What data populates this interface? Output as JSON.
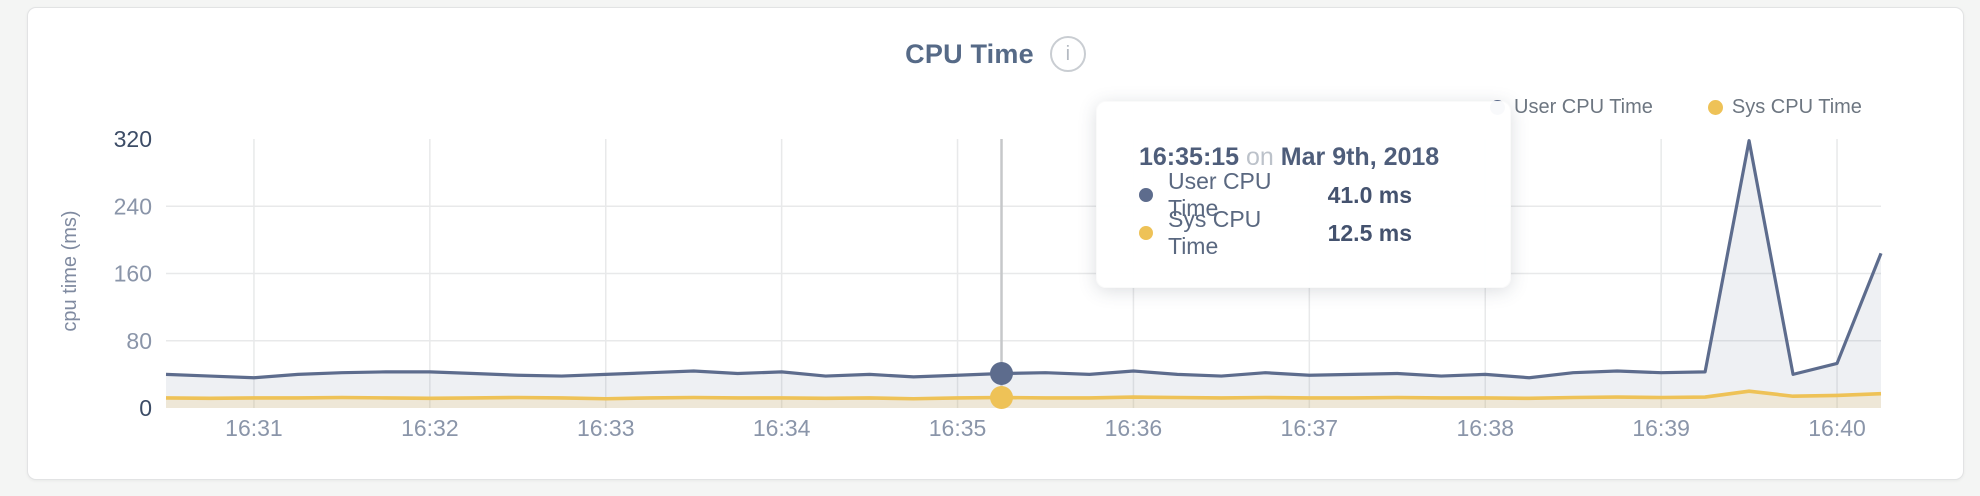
{
  "header": {
    "title": "CPU Time",
    "info_icon": "i"
  },
  "legend": {
    "items": [
      {
        "label": "User CPU Time",
        "color": "#5d6c8d"
      },
      {
        "label": "Sys CPU Time",
        "color": "#eec257"
      }
    ]
  },
  "y_axis": {
    "title": "cpu time (ms)",
    "ticks": [
      320,
      240,
      160,
      80,
      0
    ]
  },
  "x_axis": {
    "ticks": [
      "16:31",
      "16:32",
      "16:33",
      "16:34",
      "16:35",
      "16:36",
      "16:37",
      "16:38",
      "16:39",
      "16:40"
    ]
  },
  "tooltip": {
    "time": "16:35:15",
    "connector": "on",
    "date": "Mar 9th, 2018",
    "rows": [
      {
        "label": "User CPU Time",
        "value": "41.0 ms",
        "color": "#5d6c8d"
      },
      {
        "label": "Sys CPU Time",
        "value": "12.5 ms",
        "color": "#eec257"
      }
    ]
  },
  "chart_data": {
    "type": "area",
    "title": "CPU Time",
    "xlabel": "",
    "ylabel": "cpu time (ms)",
    "ylim": [
      0,
      320
    ],
    "grid": true,
    "legend_position": "top-right",
    "x": [
      "16:30:30",
      "16:30:45",
      "16:31:00",
      "16:31:15",
      "16:31:30",
      "16:31:45",
      "16:32:00",
      "16:32:15",
      "16:32:30",
      "16:32:45",
      "16:33:00",
      "16:33:15",
      "16:33:30",
      "16:33:45",
      "16:34:00",
      "16:34:15",
      "16:34:30",
      "16:34:45",
      "16:35:00",
      "16:35:15",
      "16:35:30",
      "16:35:45",
      "16:36:00",
      "16:36:15",
      "16:36:30",
      "16:36:45",
      "16:37:00",
      "16:37:15",
      "16:37:30",
      "16:37:45",
      "16:38:00",
      "16:38:15",
      "16:38:30",
      "16:38:45",
      "16:39:00",
      "16:39:15",
      "16:39:30",
      "16:39:45",
      "16:40:00",
      "16:40:15"
    ],
    "series": [
      {
        "name": "User CPU Time",
        "color": "#5d6c8d",
        "fill": "rgba(93,108,141,0.10)",
        "values": [
          40,
          38,
          36,
          40,
          42,
          43,
          43,
          41,
          39,
          38,
          40,
          42,
          44,
          41,
          43,
          38,
          40,
          37,
          39,
          41,
          42,
          40,
          44,
          40,
          38,
          42,
          39,
          40,
          41,
          38,
          40,
          36,
          42,
          44,
          42,
          43,
          318,
          40,
          53,
          184
        ]
      },
      {
        "name": "Sys CPU Time",
        "color": "#eec257",
        "fill": "rgba(238,194,87,0.18)",
        "values": [
          12,
          11.5,
          12,
          12,
          12.5,
          12,
          11.5,
          12,
          12.5,
          12,
          11,
          12,
          12.5,
          12,
          12,
          11.5,
          12,
          11,
          12,
          12.5,
          12,
          12,
          13,
          12.5,
          12,
          12.5,
          12,
          12,
          12.5,
          12,
          12,
          11.5,
          12.5,
          13,
          12.5,
          13,
          20,
          14,
          15,
          17
        ]
      }
    ],
    "hover": {
      "x": "16:35:15",
      "values": [
        41.0,
        12.5
      ]
    },
    "colors": {
      "gridline": "#e8e9ea",
      "hover_line": "#c6c8ca",
      "tick_dark": "#3c4c66",
      "tick_light": "#8a95a9"
    }
  }
}
